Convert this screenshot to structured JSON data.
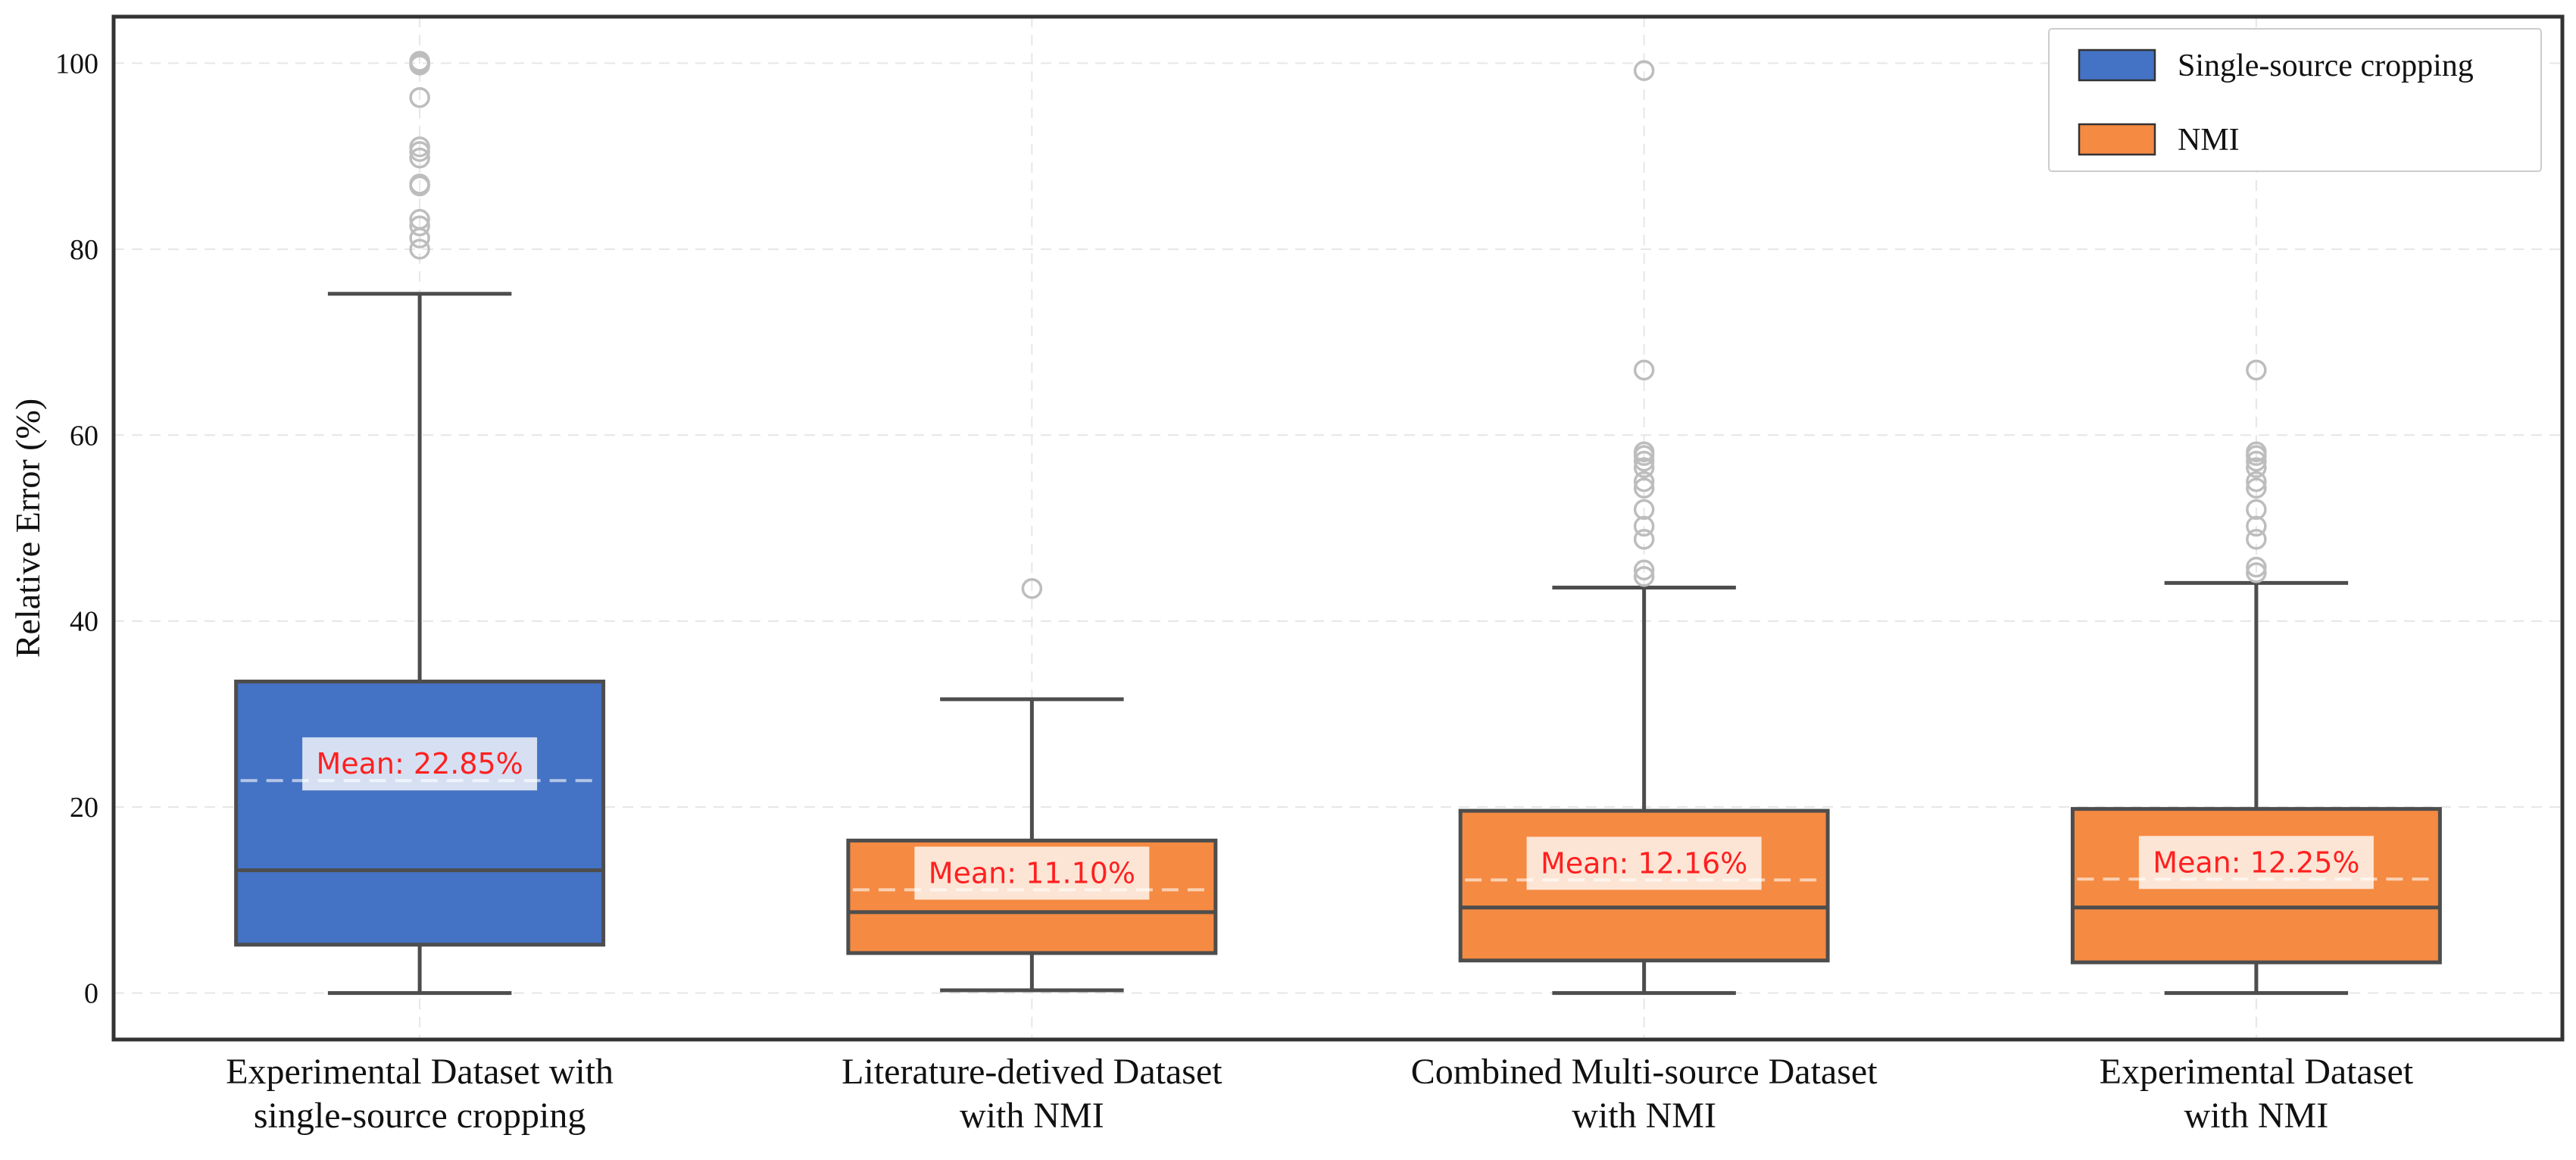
{
  "chart_data": {
    "type": "box",
    "title": "",
    "xlabel": "",
    "ylabel": "Relative Error (%)",
    "ylim": [
      -5,
      105
    ],
    "yticks": [
      0,
      20,
      40,
      60,
      80,
      100
    ],
    "grid": true,
    "legend_position": "top-right",
    "categories": [
      [
        "Experimental Dataset with",
        "single-source cropping"
      ],
      [
        "Literature-detived Dataset",
        "with NMI"
      ],
      [
        "Combined Multi-source Dataset",
        "with NMI"
      ],
      [
        "Experimental Dataset",
        "with NMI"
      ]
    ],
    "legend": [
      {
        "label": "Single-source cropping",
        "color": "#4472C4"
      },
      {
        "label": "NMI",
        "color": "#F58A42"
      }
    ],
    "boxes": [
      {
        "group": 0,
        "min": 0,
        "q1": 5.2,
        "median": 13.2,
        "q3": 33.5,
        "max": 75.2,
        "mean": 22.85,
        "mean_label": "Mean: 22.85%",
        "outliers": [
          80.0,
          81.2,
          82.5,
          83.2,
          86.8,
          87.0,
          89.8,
          90.5,
          91.0,
          96.3,
          99.8,
          100.0,
          100.2
        ]
      },
      {
        "group": 1,
        "min": 0.3,
        "q1": 4.3,
        "median": 8.7,
        "q3": 16.4,
        "max": 31.6,
        "mean": 11.1,
        "mean_label": "Mean: 11.10%",
        "outliers": [
          43.5
        ]
      },
      {
        "group": 1,
        "min": 0,
        "q1": 3.5,
        "median": 9.2,
        "q3": 19.6,
        "max": 43.6,
        "mean": 12.16,
        "mean_label": "Mean: 12.16%",
        "outliers": [
          44.8,
          45.5,
          48.8,
          50.2,
          52.0,
          54.3,
          55.0,
          56.5,
          57.2,
          57.8,
          58.2,
          67.0,
          99.2
        ]
      },
      {
        "group": 1,
        "min": 0,
        "q1": 3.3,
        "median": 9.2,
        "q3": 19.8,
        "max": 44.1,
        "mean": 12.25,
        "mean_label": "Mean: 12.25%",
        "outliers": [
          45.2,
          45.8,
          48.8,
          50.2,
          52.0,
          54.3,
          55.0,
          56.5,
          57.2,
          57.8,
          58.2,
          67.0
        ]
      }
    ],
    "colors": {
      "mean_text": "#FF2020",
      "box_edge": "#4D4D4D",
      "outlier": "#BDBDBD"
    }
  }
}
